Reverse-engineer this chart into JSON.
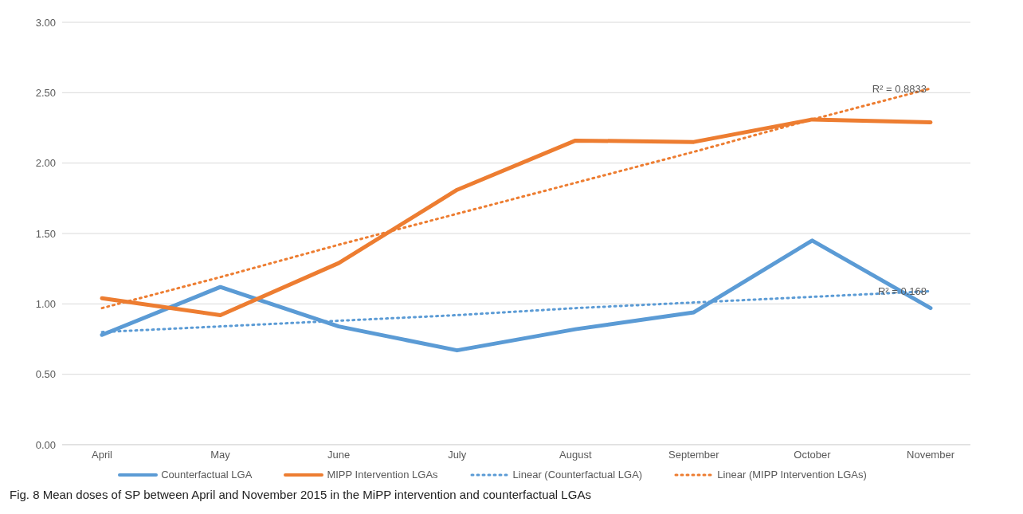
{
  "chart_data": {
    "type": "line",
    "categories": [
      "April",
      "May",
      "June",
      "July",
      "August",
      "September",
      "October",
      "November"
    ],
    "series": [
      {
        "name": "Counterfactual LGA",
        "color": "#5b9bd5",
        "values": [
          0.78,
          1.12,
          0.84,
          0.67,
          0.82,
          0.94,
          1.45,
          0.97
        ]
      },
      {
        "name": "MIPP Intervention LGAs",
        "color": "#ed7d31",
        "values": [
          1.04,
          0.92,
          1.29,
          1.81,
          2.16,
          2.15,
          2.31,
          2.29
        ]
      },
      {
        "name": "Linear (Counterfactual LGA)",
        "color": "#5b9bd5",
        "line_style": "dotted",
        "values": [
          0.8,
          0.84,
          0.88,
          0.92,
          0.97,
          1.01,
          1.05,
          1.09
        ]
      },
      {
        "name": "Linear (MIPP Intervention LGAs)",
        "color": "#ed7d31",
        "line_style": "dotted",
        "values": [
          0.97,
          1.19,
          1.42,
          1.64,
          1.86,
          2.08,
          2.31,
          2.53
        ]
      }
    ],
    "ylim": [
      0,
      3
    ],
    "yticks": [
      {
        "value": 0,
        "label": "0.00"
      },
      {
        "value": 0.5,
        "label": "0.50"
      },
      {
        "value": 1,
        "label": "1.00"
      },
      {
        "value": 1.5,
        "label": "1.50"
      },
      {
        "value": 2,
        "label": "2.00"
      },
      {
        "value": 2.5,
        "label": "2.50"
      },
      {
        "value": 3,
        "label": "3.00"
      }
    ],
    "grid": "y",
    "legend": "bottom",
    "marker": "none",
    "line_style": "solid",
    "annotations": [
      {
        "text": "R² = 0.8833",
        "x": "November",
        "y": 2.53
      },
      {
        "text": "R² = 0.168",
        "x": "November",
        "y": 1.09
      },
      "Fig. 8  Mean doses of SP between April and November 2015 in the MiPP intervention and counterfactual LGAs"
    ]
  }
}
